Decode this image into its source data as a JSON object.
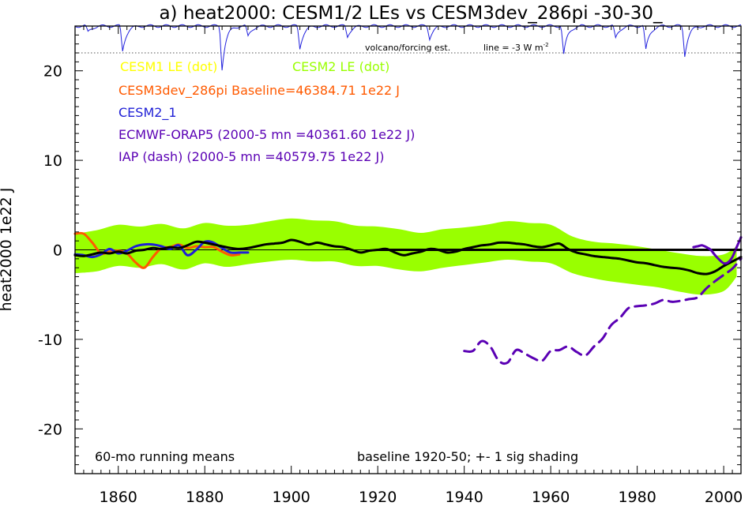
{
  "chart_data": {
    "type": "line",
    "title": "a) heat2000: CESM1/2 LEs vs CESM3dev_286pi -30-30_",
    "ylabel": "heat2000 1e22 J",
    "xlabel": "",
    "xlim": [
      1850,
      2004
    ],
    "ylim": [
      -25,
      25
    ],
    "x_ticks": [
      1860,
      1880,
      1900,
      1920,
      1940,
      1960,
      1980,
      2000
    ],
    "y_ticks": [
      -20,
      -10,
      0,
      10,
      20
    ],
    "grid": false,
    "legend": [
      {
        "label": "CESM1 LE (dot)",
        "color": "#ffff00"
      },
      {
        "label": "CESM2 LE (dot)",
        "color": "#99ff00"
      },
      {
        "label": "CESM3dev_286pi Baseline=46384.71 1e22 J",
        "color": "#ff5a00"
      },
      {
        "label": "CESM2_1",
        "color": "#1f1fd6"
      },
      {
        "label": "ECMWF-ORAP5 (2000-5 mn =40361.60 1e22 J)",
        "color": "#5a00b4"
      },
      {
        "label": "IAP (dash) (2000-5 mn =40579.75 1e22 J)",
        "color": "#5a00b4"
      }
    ],
    "annotations": {
      "volcano_label": "volcano/forcing est.",
      "line_label": "line = -3 W m",
      "line_label_sup": "-2",
      "running_means": "60-mo running means",
      "baseline_note": "baseline 1920-50; +- 1 sig shading"
    },
    "volcano_reference_y": 22,
    "colors": {
      "shading": "#99ff00",
      "ensemble_mean": "#000000",
      "cesm3dev": "#ff5a00",
      "cesm2_1": "#1f1fd6",
      "orap5": "#5a00b4",
      "iap": "#5a00b4",
      "volcano": "#2222dd"
    },
    "series": [
      {
        "name": "CESM2 LE (dot)",
        "kind": "band",
        "x": [
          1850,
          1855,
          1860,
          1865,
          1870,
          1875,
          1880,
          1885,
          1890,
          1895,
          1900,
          1905,
          1910,
          1915,
          1920,
          1925,
          1930,
          1935,
          1940,
          1945,
          1950,
          1955,
          1960,
          1965,
          1970,
          1975,
          1980,
          1985,
          1990,
          1995,
          2000,
          2003
        ],
        "upper": [
          1.8,
          2.2,
          2.8,
          2.6,
          2.9,
          2.4,
          3.0,
          2.7,
          2.8,
          3.2,
          3.5,
          3.3,
          3.2,
          2.7,
          2.6,
          2.3,
          1.9,
          2.3,
          2.5,
          2.8,
          3.2,
          3.0,
          2.8,
          1.5,
          0.9,
          0.7,
          0.4,
          0.0,
          -0.4,
          -0.7,
          -0.5,
          0.4
        ],
        "lower": [
          -2.6,
          -2.4,
          -1.8,
          -2.0,
          -1.6,
          -2.2,
          -1.5,
          -1.9,
          -1.6,
          -1.3,
          -1.1,
          -1.3,
          -1.3,
          -1.8,
          -1.8,
          -2.2,
          -2.4,
          -2.0,
          -1.7,
          -1.4,
          -1.1,
          -1.3,
          -1.5,
          -2.6,
          -3.2,
          -3.6,
          -3.9,
          -4.2,
          -4.7,
          -5.0,
          -4.6,
          -3.0
        ]
      },
      {
        "name": "CESM3dev_286pi",
        "x": [
          1850,
          1852,
          1854,
          1856,
          1858,
          1860,
          1862,
          1864,
          1866,
          1868,
          1870,
          1872,
          1874,
          1876,
          1878,
          1880,
          1882,
          1884,
          1886,
          1888
        ],
        "values": [
          1.8,
          1.8,
          0.8,
          -0.4,
          -0.2,
          -0.1,
          -0.4,
          -1.4,
          -2.0,
          -0.8,
          0.2,
          0.3,
          0.6,
          0.2,
          0.4,
          0.3,
          0.3,
          -0.2,
          -0.6,
          -0.5
        ]
      },
      {
        "name": "CESM2_1",
        "x": [
          1850,
          1852,
          1854,
          1856,
          1858,
          1860,
          1862,
          1864,
          1866,
          1868,
          1870,
          1872,
          1874,
          1876,
          1878,
          1880,
          1882,
          1884,
          1886,
          1888,
          1890
        ],
        "values": [
          -0.5,
          -0.6,
          -0.8,
          -0.5,
          0.1,
          -0.4,
          -0.1,
          0.4,
          0.6,
          0.6,
          0.4,
          0.1,
          0.5,
          -0.6,
          0.0,
          0.9,
          0.8,
          0.2,
          -0.3,
          -0.3,
          -0.3
        ]
      },
      {
        "name": "ensemble mean",
        "x": [
          1850,
          1852,
          1854,
          1856,
          1858,
          1860,
          1862,
          1864,
          1866,
          1868,
          1870,
          1872,
          1874,
          1876,
          1878,
          1880,
          1882,
          1884,
          1886,
          1888,
          1890,
          1892,
          1894,
          1896,
          1898,
          1900,
          1902,
          1904,
          1906,
          1908,
          1910,
          1912,
          1914,
          1916,
          1918,
          1920,
          1922,
          1924,
          1926,
          1928,
          1930,
          1932,
          1934,
          1936,
          1938,
          1940,
          1942,
          1944,
          1946,
          1948,
          1950,
          1952,
          1954,
          1956,
          1958,
          1960,
          1962,
          1964,
          1966,
          1968,
          1970,
          1972,
          1974,
          1976,
          1978,
          1980,
          1982,
          1984,
          1986,
          1988,
          1990,
          1992,
          1994,
          1996,
          1998,
          2000,
          2002,
          2004
        ],
        "values": [
          -0.6,
          -0.7,
          -0.5,
          -0.3,
          -0.4,
          -0.2,
          -0.4,
          -0.1,
          0.0,
          0.2,
          0.1,
          0.3,
          0.2,
          0.5,
          0.9,
          0.8,
          0.6,
          0.4,
          0.2,
          0.1,
          0.2,
          0.4,
          0.6,
          0.7,
          0.8,
          1.1,
          0.9,
          0.6,
          0.8,
          0.6,
          0.4,
          0.3,
          0.0,
          -0.3,
          -0.1,
          0.0,
          0.1,
          -0.3,
          -0.6,
          -0.4,
          -0.2,
          0.1,
          0.0,
          -0.3,
          -0.2,
          0.1,
          0.3,
          0.5,
          0.6,
          0.8,
          0.8,
          0.7,
          0.6,
          0.4,
          0.3,
          0.5,
          0.7,
          0.1,
          -0.3,
          -0.5,
          -0.7,
          -0.8,
          -0.9,
          -1.0,
          -1.2,
          -1.4,
          -1.5,
          -1.7,
          -1.9,
          -2.0,
          -2.1,
          -2.3,
          -2.6,
          -2.7,
          -2.4,
          -1.8,
          -1.3,
          -0.8
        ]
      },
      {
        "name": "CESM1 LE mean",
        "x": [
          1920,
          2004
        ],
        "values": [
          0.0,
          0.0
        ]
      },
      {
        "name": "ECMWF-ORAP5",
        "x": [
          1993,
          1994,
          1995,
          1996,
          1997,
          1998,
          1999,
          2000,
          2001,
          2002,
          2003,
          2004
        ],
        "values": [
          0.3,
          0.4,
          0.5,
          0.3,
          0.0,
          -0.6,
          -1.1,
          -1.5,
          -1.4,
          -0.8,
          0.3,
          1.4
        ]
      },
      {
        "name": "IAP (dash)",
        "x": [
          1940,
          1942,
          1944,
          1946,
          1948,
          1950,
          1952,
          1954,
          1956,
          1958,
          1960,
          1962,
          1964,
          1966,
          1968,
          1970,
          1972,
          1974,
          1976,
          1978,
          1980,
          1982,
          1984,
          1986,
          1988,
          1990,
          1992,
          1994,
          1996,
          1998,
          2000,
          2002,
          2004
        ],
        "values": [
          -11.3,
          -11.3,
          -10.2,
          -10.8,
          -12.4,
          -12.6,
          -11.2,
          -11.6,
          -12.1,
          -12.4,
          -11.3,
          -11.2,
          -10.8,
          -11.4,
          -11.8,
          -10.8,
          -9.9,
          -8.4,
          -7.6,
          -6.5,
          -6.3,
          -6.2,
          -6.0,
          -5.6,
          -5.8,
          -5.7,
          -5.5,
          -5.3,
          -4.3,
          -3.5,
          -2.8,
          -2.1,
          -1.0
        ]
      },
      {
        "name": "volcano/forcing est.",
        "kind": "dips",
        "baseline": 25.0,
        "events": [
          {
            "year": 1853,
            "depth": 0.7
          },
          {
            "year": 1861,
            "depth": 2.8
          },
          {
            "year": 1884,
            "depth": 4.8
          },
          {
            "year": 1890,
            "depth": 1.2
          },
          {
            "year": 1902,
            "depth": 2.5
          },
          {
            "year": 1913,
            "depth": 1.2
          },
          {
            "year": 1932,
            "depth": 1.4
          },
          {
            "year": 1963,
            "depth": 3.2
          },
          {
            "year": 1975,
            "depth": 1.4
          },
          {
            "year": 1982,
            "depth": 2.7
          },
          {
            "year": 1991,
            "depth": 3.3
          }
        ]
      }
    ]
  }
}
